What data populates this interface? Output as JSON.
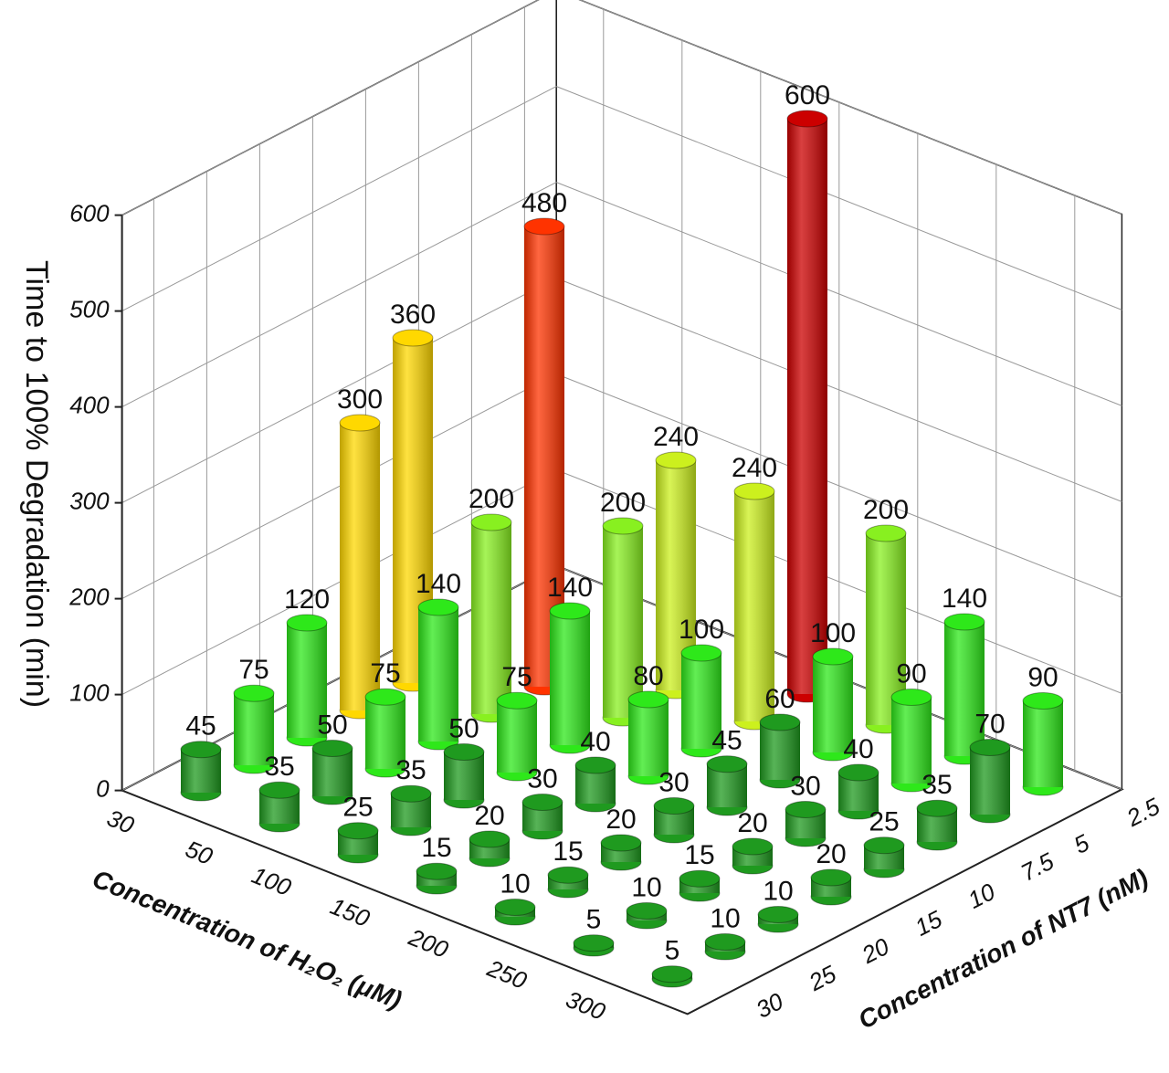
{
  "chart_data": {
    "type": "bar3d",
    "z_axis_label": "Time to 100% Degradation (min)",
    "x_axis_label": "Concentration of H₂O₂ (μM)",
    "y_axis_label": "Concentration of NT7 (nM)",
    "x_categories": [
      30,
      50,
      100,
      150,
      200,
      250,
      300
    ],
    "y_categories": [
      30,
      25,
      20,
      15,
      10,
      7.5,
      5,
      2.5
    ],
    "values": [
      [
        45,
        75,
        120,
        300,
        360,
        null,
        null,
        null
      ],
      [
        35,
        50,
        75,
        140,
        200,
        480,
        null,
        null
      ],
      [
        25,
        35,
        50,
        75,
        140,
        200,
        240,
        null
      ],
      [
        15,
        20,
        30,
        40,
        80,
        100,
        240,
        600
      ],
      [
        10,
        15,
        20,
        30,
        45,
        60,
        100,
        200
      ],
      [
        5,
        10,
        15,
        20,
        30,
        40,
        90,
        140
      ],
      [
        5,
        10,
        10,
        20,
        25,
        35,
        70,
        90
      ]
    ],
    "zlim": [
      0,
      600
    ],
    "zticks": [
      0,
      100,
      200,
      300,
      400,
      500,
      600
    ],
    "colors": [
      "#1f9a1f",
      "#2ee81a",
      "#88f020",
      "#ccf01e",
      "#ffd800",
      "#ff8800",
      "#ff3300",
      "#cc0000"
    ],
    "grid": true
  }
}
